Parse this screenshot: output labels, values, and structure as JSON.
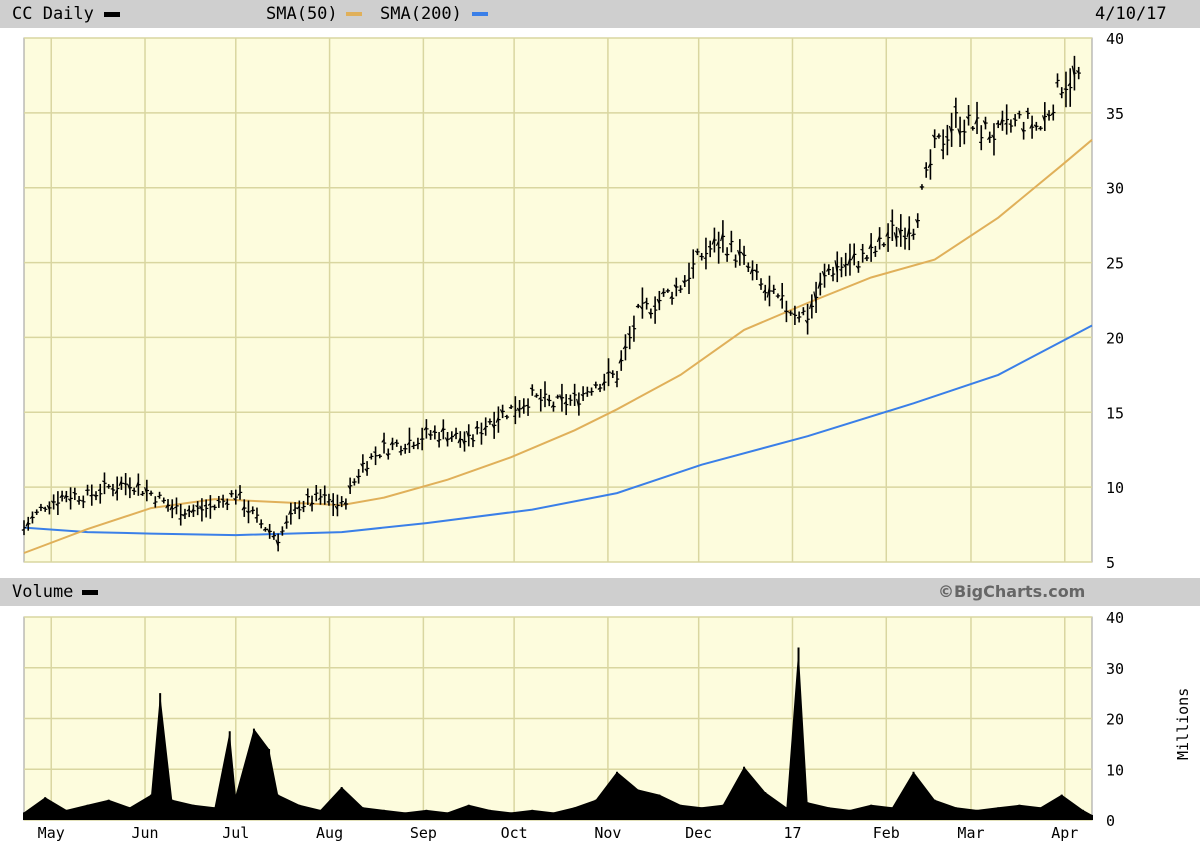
{
  "header": {
    "ticker_label": "CC Daily",
    "sma50_label": "SMA(50)",
    "sma200_label": "SMA(200)",
    "date": "4/10/17"
  },
  "volume_header": {
    "label": "Volume",
    "credit": "©BigCharts.com"
  },
  "colors": {
    "background": "#fdfcdd",
    "grid": "#d9d6a0",
    "price": "#000000",
    "sma50": "#e0b05a",
    "sma200": "#3a7fe8",
    "header_band": "#cfcfcf"
  },
  "chart_data": [
    {
      "type": "line",
      "title": "CC Daily",
      "series": [
        {
          "name": "CC Daily",
          "style": "ohlc-bars",
          "points": [
            [
              "2016-04-22",
              7.3
            ],
            [
              "2016-04-29",
              8.8
            ],
            [
              "2016-05-06",
              9.5
            ],
            [
              "2016-05-13",
              9.4
            ],
            [
              "2016-05-20",
              10.0
            ],
            [
              "2016-05-27",
              10.3
            ],
            [
              "2016-06-03",
              9.6
            ],
            [
              "2016-06-10",
              8.6
            ],
            [
              "2016-06-17",
              8.4
            ],
            [
              "2016-06-24",
              8.7
            ],
            [
              "2016-07-01",
              9.6
            ],
            [
              "2016-07-08",
              7.8
            ],
            [
              "2016-07-15",
              6.6
            ],
            [
              "2016-07-22",
              8.8
            ],
            [
              "2016-07-29",
              9.3
            ],
            [
              "2016-08-05",
              8.7
            ],
            [
              "2016-08-12",
              11.5
            ],
            [
              "2016-08-19",
              12.6
            ],
            [
              "2016-08-26",
              13.0
            ],
            [
              "2016-09-02",
              13.5
            ],
            [
              "2016-09-09",
              13.6
            ],
            [
              "2016-09-16",
              13.0
            ],
            [
              "2016-09-23",
              14.5
            ],
            [
              "2016-09-30",
              15.2
            ],
            [
              "2016-10-07",
              16.0
            ],
            [
              "2016-10-14",
              15.5
            ],
            [
              "2016-10-21",
              15.8
            ],
            [
              "2016-10-28",
              17.0
            ],
            [
              "2016-11-04",
              17.5
            ],
            [
              "2016-11-11",
              21.5
            ],
            [
              "2016-11-18",
              22.5
            ],
            [
              "2016-11-25",
              23.5
            ],
            [
              "2016-12-02",
              25.5
            ],
            [
              "2016-12-09",
              26.5
            ],
            [
              "2016-12-16",
              25.0
            ],
            [
              "2016-12-23",
              23.0
            ],
            [
              "2016-12-30",
              22.0
            ],
            [
              "2017-01-06",
              21.5
            ],
            [
              "2017-01-13",
              24.5
            ],
            [
              "2017-01-20",
              25.0
            ],
            [
              "2017-01-27",
              25.5
            ],
            [
              "2017-02-03",
              27.0
            ],
            [
              "2017-02-10",
              27.5
            ],
            [
              "2017-02-17",
              32.5
            ],
            [
              "2017-02-24",
              34.5
            ],
            [
              "2017-03-03",
              34.0
            ],
            [
              "2017-03-10",
              33.5
            ],
            [
              "2017-03-17",
              34.5
            ],
            [
              "2017-03-24",
              34.0
            ],
            [
              "2017-03-31",
              37.0
            ],
            [
              "2017-04-07",
              37.5
            ]
          ]
        },
        {
          "name": "SMA(50)",
          "points": [
            [
              "2016-04-22",
              5.6
            ],
            [
              "2016-05-13",
              7.2
            ],
            [
              "2016-06-03",
              8.6
            ],
            [
              "2016-06-24",
              9.2
            ],
            [
              "2016-07-15",
              9.0
            ],
            [
              "2016-08-05",
              8.8
            ],
            [
              "2016-08-19",
              9.3
            ],
            [
              "2016-09-09",
              10.5
            ],
            [
              "2016-09-30",
              12.0
            ],
            [
              "2016-10-21",
              13.8
            ],
            [
              "2016-11-04",
              15.2
            ],
            [
              "2016-11-25",
              17.5
            ],
            [
              "2016-12-16",
              20.5
            ],
            [
              "2017-01-06",
              22.3
            ],
            [
              "2017-01-27",
              24.0
            ],
            [
              "2017-02-17",
              25.2
            ],
            [
              "2017-03-10",
              28.0
            ],
            [
              "2017-03-31",
              31.5
            ],
            [
              "2017-04-10",
              33.2
            ]
          ]
        },
        {
          "name": "SMA(200)",
          "points": [
            [
              "2016-04-22",
              7.3
            ],
            [
              "2016-05-13",
              7.0
            ],
            [
              "2016-06-03",
              6.9
            ],
            [
              "2016-07-01",
              6.8
            ],
            [
              "2016-08-05",
              7.0
            ],
            [
              "2016-09-02",
              7.6
            ],
            [
              "2016-10-07",
              8.5
            ],
            [
              "2016-11-04",
              9.6
            ],
            [
              "2016-12-02",
              11.5
            ],
            [
              "2017-01-06",
              13.4
            ],
            [
              "2017-02-10",
              15.6
            ],
            [
              "2017-03-10",
              17.5
            ],
            [
              "2017-04-10",
              20.8
            ]
          ]
        }
      ],
      "ylim": [
        5,
        40
      ],
      "y_ticks": [
        5,
        10,
        15,
        20,
        25,
        30,
        35,
        40
      ],
      "grid": true,
      "legend": "top"
    },
    {
      "type": "area",
      "title": "Volume",
      "ylabel": "Millions",
      "x_ticks": [
        "May",
        "Jun",
        "Jul",
        "Aug",
        "Sep",
        "Oct",
        "Nov",
        "Dec",
        "17",
        "Feb",
        "Mar",
        "Apr"
      ],
      "series": [
        {
          "name": "Volume",
          "points": [
            [
              "2016-04-22",
              1.5
            ],
            [
              "2016-04-29",
              4.5
            ],
            [
              "2016-05-06",
              2.0
            ],
            [
              "2016-05-13",
              3.0
            ],
            [
              "2016-05-20",
              4.0
            ],
            [
              "2016-05-27",
              2.5
            ],
            [
              "2016-06-03",
              5.0
            ],
            [
              "2016-06-06",
              25.0
            ],
            [
              "2016-06-10",
              4.0
            ],
            [
              "2016-06-17",
              3.0
            ],
            [
              "2016-06-24",
              2.5
            ],
            [
              "2016-06-29",
              17.5
            ],
            [
              "2016-07-01",
              5.0
            ],
            [
              "2016-07-07",
              18.0
            ],
            [
              "2016-07-12",
              14.0
            ],
            [
              "2016-07-15",
              5.0
            ],
            [
              "2016-07-22",
              3.0
            ],
            [
              "2016-07-29",
              2.0
            ],
            [
              "2016-08-05",
              6.5
            ],
            [
              "2016-08-12",
              2.5
            ],
            [
              "2016-08-19",
              2.0
            ],
            [
              "2016-08-26",
              1.5
            ],
            [
              "2016-09-02",
              2.0
            ],
            [
              "2016-09-09",
              1.5
            ],
            [
              "2016-09-16",
              3.0
            ],
            [
              "2016-09-23",
              2.0
            ],
            [
              "2016-09-30",
              1.5
            ],
            [
              "2016-10-07",
              2.0
            ],
            [
              "2016-10-14",
              1.5
            ],
            [
              "2016-10-21",
              2.5
            ],
            [
              "2016-10-28",
              4.0
            ],
            [
              "2016-11-04",
              9.5
            ],
            [
              "2016-11-11",
              6.0
            ],
            [
              "2016-11-18",
              5.0
            ],
            [
              "2016-11-25",
              3.0
            ],
            [
              "2016-12-02",
              2.5
            ],
            [
              "2016-12-09",
              3.0
            ],
            [
              "2016-12-16",
              10.5
            ],
            [
              "2016-12-23",
              5.5
            ],
            [
              "2016-12-30",
              2.5
            ],
            [
              "2017-01-03",
              34.0
            ],
            [
              "2017-01-06",
              3.5
            ],
            [
              "2017-01-13",
              2.5
            ],
            [
              "2017-01-20",
              2.0
            ],
            [
              "2017-01-27",
              3.0
            ],
            [
              "2017-02-03",
              2.5
            ],
            [
              "2017-02-10",
              9.5
            ],
            [
              "2017-02-17",
              4.0
            ],
            [
              "2017-02-24",
              2.5
            ],
            [
              "2017-03-03",
              2.0
            ],
            [
              "2017-03-10",
              2.5
            ],
            [
              "2017-03-17",
              3.0
            ],
            [
              "2017-03-24",
              2.5
            ],
            [
              "2017-03-31",
              5.0
            ],
            [
              "2017-04-07",
              2.0
            ],
            [
              "2017-04-10",
              1.0
            ]
          ]
        }
      ],
      "ylim": [
        0,
        40
      ],
      "y_ticks": [
        0,
        10,
        20,
        30,
        40
      ],
      "grid": true
    }
  ]
}
